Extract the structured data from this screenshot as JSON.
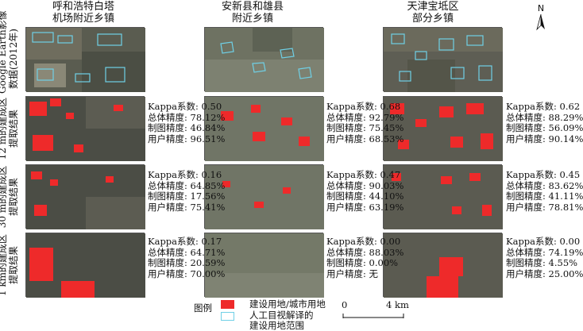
{
  "columns": [
    {
      "line1": "呼和浩特白塔",
      "line2": "机场附近乡镇"
    },
    {
      "line1": "安新县和雄县",
      "line2": "附近乡镇"
    },
    {
      "line1": "天津宝坻区",
      "line2": "部分乡镇"
    }
  ],
  "rows": [
    {
      "line1": "Google Earth影像",
      "line2": "数据(2012年)"
    },
    {
      "line1": "12 m的建成区",
      "line2": "提取结果"
    },
    {
      "line1": "30 m的建成区",
      "line2": "提取结果"
    },
    {
      "line1": "1 km的建成区",
      "line2": "提取结果"
    }
  ],
  "stats": [
    [
      {
        "kappa": "Kappa系数: 0.50",
        "overall": "总体精度: 78.12%",
        "producer": "制图精度: 46.84%",
        "user": "用户精度: 96.51%"
      },
      {
        "kappa": "Kappa系数: 0.68",
        "overall": "总体精度: 92.79%",
        "producer": "制图精度: 75.45%",
        "user": "用户精度: 68.53%"
      },
      {
        "kappa": "Kappa系数: 0.62",
        "overall": "总体精度: 88.29%",
        "producer": "制图精度: 56.09%",
        "user": "用户精度: 90.14%"
      }
    ],
    [
      {
        "kappa": "Kappa系数: 0.16",
        "overall": "总体精度: 64.85%",
        "producer": "制图精度: 17.56%",
        "user": "用户精度: 75.41%"
      },
      {
        "kappa": "Kappa系数: 0.47",
        "overall": "总体精度: 90.03%",
        "producer": "制图精度: 44.10%",
        "user": "用户精度: 63.19%"
      },
      {
        "kappa": "Kappa系数: 0.45",
        "overall": "总体精度: 83.62%",
        "producer": "制图精度: 41.11%",
        "user": "用户精度: 78.81%"
      }
    ],
    [
      {
        "kappa": "Kappa系数: 0.17",
        "overall": "总体精度: 64.71%",
        "producer": "制图精度: 20.59%",
        "user": "用户精度: 70.00%"
      },
      {
        "kappa": "Kappa系数: 0.00",
        "overall": "总体精度: 88.03%",
        "producer": "制图精度: 0.00%",
        "user": "用户精度: 无"
      },
      {
        "kappa": "Kappa系数: 0.00",
        "overall": "总体精度: 74.19%",
        "producer": "制图精度: 4.55%",
        "user": "用户精度: 25.00%"
      }
    ]
  ],
  "legend": {
    "title": "图例",
    "item1": "建设用地/城市用地",
    "item2_line1": "人工目视解译的",
    "item2_line2": "建设用地范围",
    "scale_zero": "0",
    "scale_end": "4 km"
  },
  "north": "N",
  "colors": {
    "built_up": "#ee2a2a",
    "outline": "#6fd0e6",
    "imagery_dark": "#3d3f38",
    "imagery_light": "#8e8c80"
  }
}
